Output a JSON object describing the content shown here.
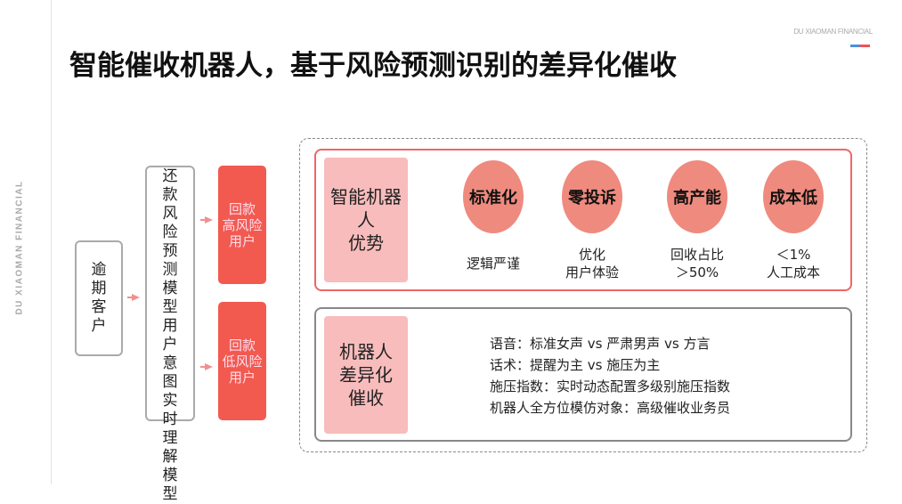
{
  "brand_vertical": "DU XIAOMAN  FINANCIAL",
  "brand_top": "DU XIAOMAN FINANCIAL",
  "title": "智能催收机器人，基于风险预测识别的差异化催收",
  "flow": {
    "customer": "逾期客户",
    "model_top": "还款风险预测模型",
    "model_bottom": "用户意图实时理解模型",
    "high_risk": "回款\n高风险\n用户",
    "low_risk": "回款\n低风险\n用户"
  },
  "advantages": {
    "label": "智能机器人\n优势",
    "items": [
      {
        "title": "标准化",
        "desc": "逻辑严谨"
      },
      {
        "title": "零投诉",
        "desc": "优化\n用户体验"
      },
      {
        "title": "高产能",
        "desc": "回收占比\n＞50%"
      },
      {
        "title": "成本低",
        "desc": "＜1%\n人工成本"
      }
    ]
  },
  "differentiation": {
    "label": "机器人\n差异化\n催收",
    "lines": [
      "语音：标准女声 vs 严肃男声 vs 方言",
      "话术：提醒为主 vs 施压为主",
      "施压指数：实时动态配置多级别施压指数",
      "机器人全方位模仿对象：高级催收业务员"
    ]
  },
  "colors": {
    "red": "#f25a50",
    "pink": "#f8bcbc",
    "circle": "#ef8a7e",
    "border_red": "#e66666"
  }
}
